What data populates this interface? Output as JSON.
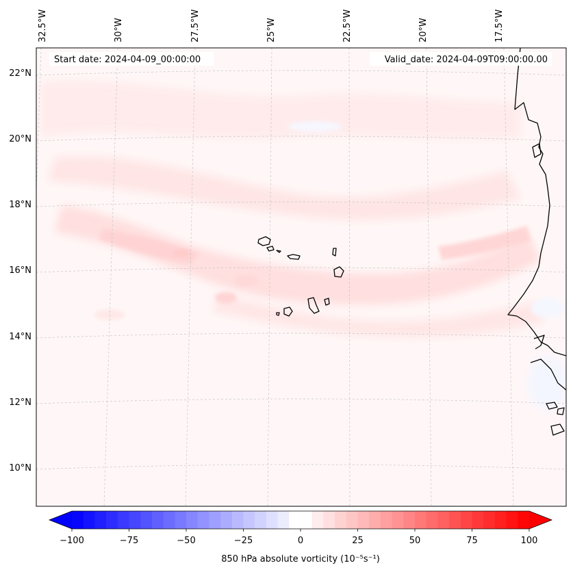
{
  "header": {
    "start_date": "Start date: 2024-04-09_00:00:00",
    "valid_date": "Valid_date: 2024-04-09T09:00:00.00"
  },
  "map": {
    "lon_labels": [
      "32.5°W",
      "30°W",
      "27.5°W",
      "25°W",
      "22.5°W",
      "20°W",
      "17.5°W"
    ],
    "lat_labels": [
      "22°N",
      "20°N",
      "18°N",
      "16°N",
      "14°N",
      "12°N",
      "10°N"
    ],
    "extent": {
      "lon_min": -33.0,
      "lon_max": -16.0,
      "lat_min": 9.0,
      "lat_max": 22.8
    }
  },
  "colorbar": {
    "label": "850 hPa absolute vorticity (10⁻⁵s⁻¹)",
    "ticks": [
      "−100",
      "−75",
      "−50",
      "−25",
      "0",
      "25",
      "50",
      "75",
      "100"
    ],
    "range": [
      -100,
      100
    ],
    "step": 5,
    "colors": {
      "neg": "#0000ff",
      "zero": "#ffffff",
      "pos": "#ff0000"
    }
  },
  "colors": {
    "land_outline": "#000000",
    "graticule": "#bbbbbb",
    "background_tint": "#fff6f6"
  }
}
